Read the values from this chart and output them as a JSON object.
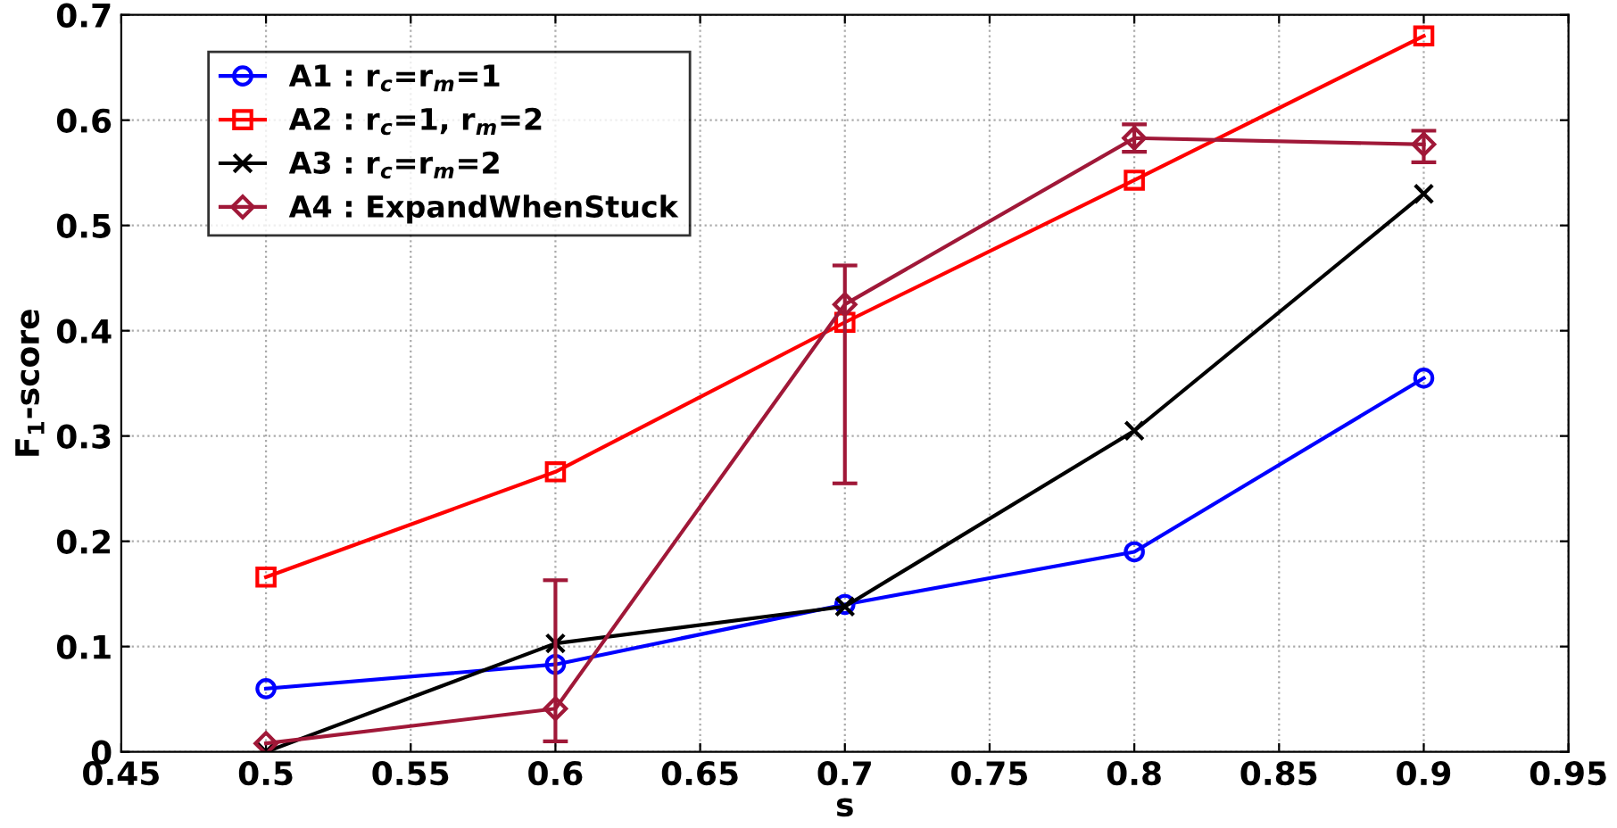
{
  "chart_data": {
    "type": "line",
    "xlabel": "s",
    "ylabel": "F$_{1}$-score",
    "x": [
      0.5,
      0.6,
      0.7,
      0.8,
      0.9
    ],
    "xlim": [
      0.45,
      0.95
    ],
    "xticks": [
      0.45,
      0.5,
      0.55,
      0.6,
      0.65,
      0.7,
      0.75,
      0.8,
      0.85,
      0.9,
      0.95
    ],
    "ylim": [
      0,
      0.7
    ],
    "yticks": [
      0,
      0.1,
      0.2,
      0.3,
      0.4,
      0.5,
      0.6,
      0.7
    ],
    "grid": true,
    "legend": "top left",
    "line_style": "solid",
    "series": [
      {
        "name": "A1 : r$_{c}$=r$_{m}$=1",
        "color": "#0000ff",
        "marker": "circle",
        "values": [
          0.06,
          0.083,
          0.14,
          0.19,
          0.355
        ]
      },
      {
        "name": "A2 : r$_{c}$=1, r$_{m}$=2",
        "color": "#ff0000",
        "marker": "square",
        "values": [
          0.166,
          0.266,
          0.408,
          0.543,
          0.68
        ]
      },
      {
        "name": "A3 : r$_{c}$=r$_{m}$=2",
        "color": "#000000",
        "marker": "cross",
        "values": [
          0.0,
          0.103,
          0.138,
          0.305,
          0.53
        ]
      },
      {
        "name": "A4 : ExpandWhenStuck",
        "color": "#a01838",
        "marker": "diamond",
        "values": [
          0.008,
          0.041,
          0.425,
          0.583,
          0.577
        ],
        "errors": [
          null,
          [
            0.01,
            0.163
          ],
          [
            0.255,
            0.462
          ],
          [
            0.57,
            0.596
          ],
          [
            0.56,
            0.59
          ]
        ]
      }
    ]
  }
}
